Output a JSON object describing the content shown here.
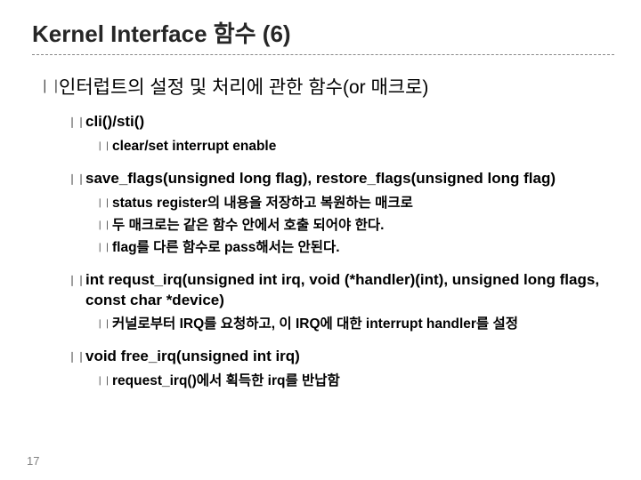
{
  "title": "Kernel Interface 함수 (6)",
  "lvl1": "인터럽트의 설정 및 처리에 관한 함수(or 매크로)",
  "items": [
    {
      "h": "cli()/sti()",
      "sub": [
        "clear/set interrupt enable"
      ]
    },
    {
      "h": "save_flags(unsigned long flag), restore_flags(unsigned long flag)",
      "sub": [
        "status register의 내용을 저장하고 복원하는 매크로",
        "두 매크로는 같은 함수 안에서 호출 되어야 한다.",
        "flag를 다른 함수로 pass해서는 안된다."
      ]
    },
    {
      "h": "int requst_irq(unsigned int irq, void (*handler)(int), unsigned long flags, const char *device)",
      "sub": [
        "커널로부터 IRQ를 요청하고, 이 IRQ에 대한 interrupt handler를 설정"
      ]
    },
    {
      "h": "void free_irq(unsigned int irq)",
      "sub": [
        "request_irq()에서 획득한 irq를 반납함"
      ]
    }
  ],
  "pagenum": "17",
  "bullet_glyph": "❘❘"
}
